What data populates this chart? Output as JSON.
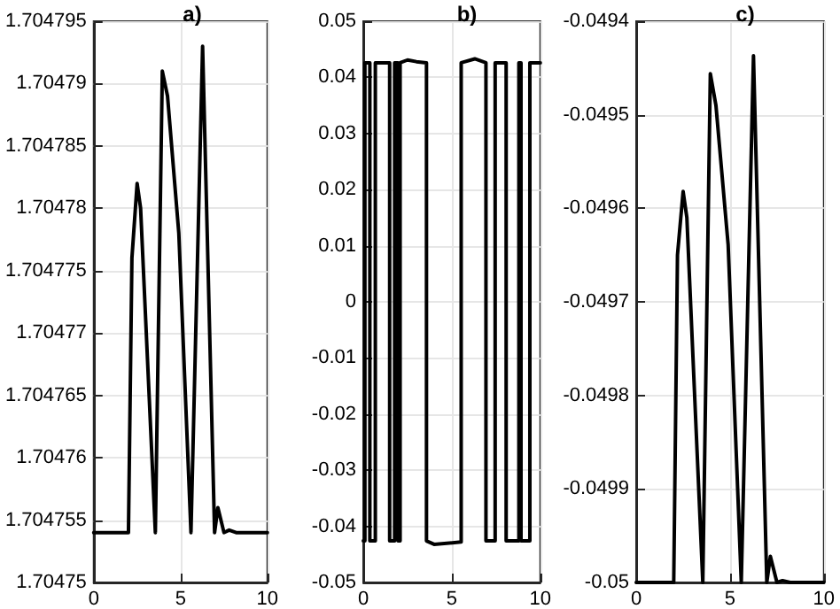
{
  "chart_data": [
    {
      "type": "line",
      "title": "a)",
      "xlim": [
        0,
        10
      ],
      "xticks": [
        0,
        5,
        10
      ],
      "ylim": [
        1.70475,
        1.704795
      ],
      "yticks": [
        1.70475,
        1.704755,
        1.70476,
        1.704765,
        1.70477,
        1.704775,
        1.70478,
        1.704785,
        1.70479,
        1.704795
      ],
      "grid": true,
      "marker": "none",
      "line_style": "solid",
      "series": [
        {
          "color": "#000000",
          "x": [
            0,
            2.0,
            2.2,
            2.5,
            2.7,
            3.55,
            3.95,
            4.25,
            4.9,
            5.6,
            6.27,
            6.96,
            7.15,
            7.5,
            7.8,
            8.2,
            10
          ],
          "values": [
            1.704754,
            1.704754,
            1.704776,
            1.704782,
            1.70478,
            1.704754,
            1.704791,
            1.704789,
            1.704778,
            1.704754,
            1.704793,
            1.704754,
            1.704756,
            1.704754,
            1.7047542,
            1.704754,
            1.704754
          ]
        }
      ]
    },
    {
      "type": "line",
      "title": "b)",
      "xlim": [
        0,
        10
      ],
      "xticks": [
        0,
        5,
        10
      ],
      "ylim": [
        -0.05,
        0.05
      ],
      "yticks": [
        -0.05,
        -0.04,
        -0.03,
        -0.02,
        -0.01,
        0,
        0.01,
        0.02,
        0.03,
        0.04,
        0.05
      ],
      "grid": true,
      "marker": "none",
      "line_style": "solid",
      "series": [
        {
          "color": "#000000",
          "x": [
            0,
            0.09,
            0.09,
            0.37,
            0.37,
            0.68,
            0.68,
            1.49,
            1.49,
            1.77,
            1.77,
            1.96,
            1.96,
            2.08,
            2.08,
            2.5,
            3.0,
            3.57,
            3.57,
            4.0,
            5.53,
            5.53,
            6.3,
            6.93,
            6.93,
            7.45,
            7.45,
            8.07,
            8.07,
            8.79,
            8.79,
            8.91,
            8.91,
            9.41,
            9.41,
            10
          ],
          "values": [
            -0.0426,
            -0.0426,
            0.0426,
            0.0426,
            -0.0426,
            -0.0426,
            0.0426,
            0.0426,
            -0.0426,
            -0.0426,
            0.0426,
            0.0426,
            -0.0426,
            -0.0426,
            0.0426,
            0.0431,
            0.0428,
            0.0426,
            -0.0426,
            -0.0432,
            -0.0428,
            0.0426,
            0.0433,
            0.0426,
            -0.0426,
            -0.0426,
            0.0426,
            0.0426,
            -0.0426,
            -0.0426,
            0.0426,
            0.0426,
            -0.0426,
            -0.0426,
            0.0426,
            0.0426
          ]
        }
      ]
    },
    {
      "type": "line",
      "title": "c)",
      "xlim": [
        0,
        10
      ],
      "xticks": [
        0,
        5,
        10
      ],
      "ylim": [
        -0.05,
        -0.0494
      ],
      "yticks": [
        -0.05,
        -0.0499,
        -0.0498,
        -0.0497,
        -0.0496,
        -0.0495,
        -0.0494
      ],
      "grid": true,
      "marker": "none",
      "line_style": "solid",
      "series": [
        {
          "color": "#000000",
          "x": [
            0,
            2.0,
            2.2,
            2.5,
            2.7,
            3.55,
            3.95,
            4.25,
            4.9,
            5.6,
            6.25,
            6.96,
            7.15,
            7.5,
            7.8,
            8.2,
            10
          ],
          "values": [
            -0.05,
            -0.05,
            -0.04965,
            -0.049582,
            -0.04961,
            -0.05,
            -0.049456,
            -0.04949,
            -0.049639,
            -0.05,
            -0.049437,
            -0.05,
            -0.049972,
            -0.05,
            -0.049998,
            -0.05,
            -0.05
          ]
        }
      ]
    }
  ]
}
